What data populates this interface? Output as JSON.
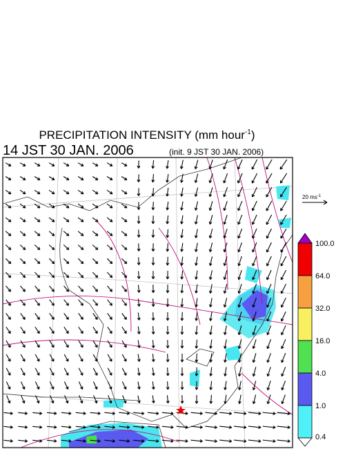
{
  "header": {
    "title": "PRECIPITATION INTENSITY (mm hour",
    "title_sup": "-1",
    "title_end": ")",
    "valid_time": "14 JST 30 JAN. 2006",
    "init_time": "(init. 9 JST 30 JAN. 2006)"
  },
  "vector_legend": {
    "label": "20 ms",
    "label_sup": "-1"
  },
  "colorbar": {
    "labels": [
      "100.0",
      "64.0",
      "32.0",
      "16.0",
      "4.0",
      "1.0",
      "0.4"
    ]
  }
}
